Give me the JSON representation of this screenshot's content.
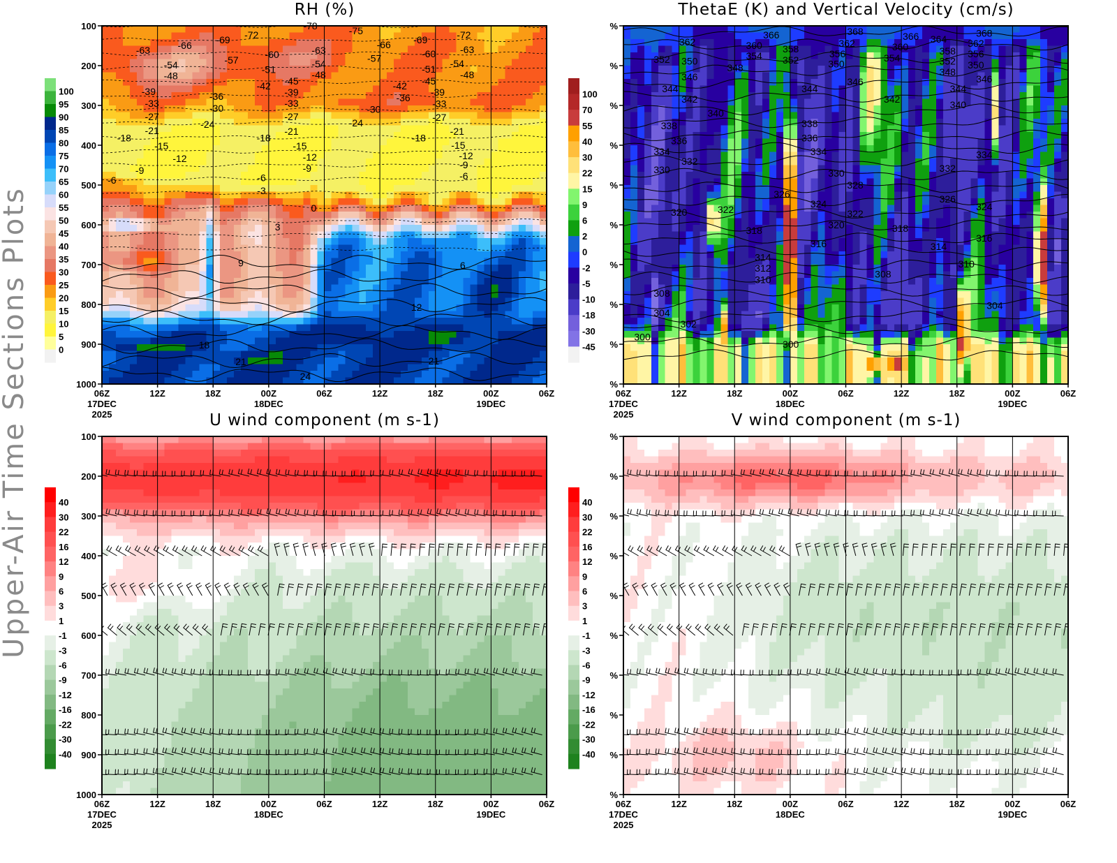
{
  "page_title": "Upper-Air Time Sections Plots",
  "chart_data": [
    {
      "id": "rh",
      "type": "heatmap",
      "title": "RH (%)",
      "x_ticks": [
        "06Z",
        "12Z",
        "18Z",
        "00Z",
        "06Z",
        "12Z",
        "18Z",
        "00Z",
        "06Z"
      ],
      "x_dates": [
        {
          "index": 0,
          "lines": [
            "17DEC",
            "2025"
          ]
        },
        {
          "index": 3,
          "lines": [
            "18DEC"
          ]
        },
        {
          "index": 7,
          "lines": [
            "19DEC"
          ]
        }
      ],
      "y_ticks": [
        "100",
        "200",
        "300",
        "400",
        "500",
        "600",
        "700",
        "800",
        "900",
        "1000"
      ],
      "ylim": [
        1000,
        100
      ],
      "xlabel": "",
      "ylabel": "",
      "colorbar": {
        "labels": [
          "100",
          "95",
          "90",
          "85",
          "80",
          "75",
          "70",
          "65",
          "60",
          "55",
          "50",
          "45",
          "40",
          "35",
          "30",
          "25",
          "20",
          "15",
          "10",
          "5",
          "0"
        ],
        "levels": [
          0,
          5,
          10,
          15,
          20,
          25,
          30,
          35,
          40,
          45,
          50,
          55,
          60,
          65,
          70,
          75,
          80,
          85,
          90,
          95,
          100
        ],
        "colors": [
          "#f2f2f2",
          "#ffff9b",
          "#fff53c",
          "#f5f064",
          "#ffcd28",
          "#fa9b14",
          "#fa5a1e",
          "#e67864",
          "#eb9682",
          "#f0b496",
          "#f5c8b4",
          "#fbe3e3",
          "#d7dcfa",
          "#96d2fa",
          "#3cbefa",
          "#1491f5",
          "#0a6ee6",
          "#0046b4",
          "#00288c",
          "#078a07",
          "#3cb43c",
          "#7de07a"
        ]
      },
      "contour_field": "temperature (C)",
      "contour_labels": [
        [
          3.75,
          100,
          "-78"
        ],
        [
          4.57,
          112,
          "-75"
        ],
        [
          0.74,
          161,
          "-63"
        ],
        [
          1.49,
          149,
          "-66"
        ],
        [
          2.18,
          135,
          "-69"
        ],
        [
          2.69,
          123,
          "-72"
        ],
        [
          1.24,
          198,
          "-54"
        ],
        [
          1.24,
          225,
          "-48"
        ],
        [
          2.33,
          186,
          "-57"
        ],
        [
          3.06,
          172,
          "-60"
        ],
        [
          3.0,
          210,
          "-51"
        ],
        [
          3.9,
          161,
          "-63"
        ],
        [
          3.9,
          196,
          "-54"
        ],
        [
          3.9,
          223,
          "-48"
        ],
        [
          4.9,
          182,
          "-57"
        ],
        [
          5.07,
          147,
          "-66"
        ],
        [
          5.73,
          135,
          "-69"
        ],
        [
          6.51,
          123,
          "-72"
        ],
        [
          6.57,
          160,
          "-63"
        ],
        [
          5.88,
          170,
          "-60"
        ],
        [
          6.39,
          195,
          "-54"
        ],
        [
          5.88,
          209,
          "-51"
        ],
        [
          6.57,
          223,
          "-48"
        ],
        [
          3.41,
          239,
          "-45"
        ],
        [
          2.91,
          251,
          "-42"
        ],
        [
          3.41,
          267,
          "-39"
        ],
        [
          3.41,
          295,
          "-33"
        ],
        [
          0.84,
          265,
          "-39"
        ],
        [
          0.9,
          295,
          "-33"
        ],
        [
          2.06,
          277,
          "-36"
        ],
        [
          2.06,
          307,
          "-30"
        ],
        [
          0.9,
          328,
          "-27"
        ],
        [
          1.9,
          347,
          "-24"
        ],
        [
          0.9,
          363,
          "-21"
        ],
        [
          0.4,
          382,
          "-18"
        ],
        [
          1.07,
          402,
          "-15"
        ],
        [
          1.4,
          433,
          "-12"
        ],
        [
          0.68,
          463,
          "-9"
        ],
        [
          0.18,
          488,
          "-6"
        ],
        [
          3.41,
          328,
          "-27"
        ],
        [
          3.41,
          365,
          "-21"
        ],
        [
          2.91,
          382,
          "-18"
        ],
        [
          3.56,
          402,
          "-15"
        ],
        [
          3.74,
          430,
          "-12"
        ],
        [
          3.69,
          458,
          "-9"
        ],
        [
          2.87,
          482,
          "-6"
        ],
        [
          2.87,
          514,
          "-3"
        ],
        [
          4.89,
          310,
          "-30"
        ],
        [
          4.57,
          344,
          "-24"
        ],
        [
          5.36,
          251,
          "-42"
        ],
        [
          5.42,
          281,
          "-36"
        ],
        [
          5.88,
          239,
          "-45"
        ],
        [
          6.04,
          267,
          "-39"
        ],
        [
          6.07,
          296,
          "-33"
        ],
        [
          6.07,
          330,
          "-27"
        ],
        [
          6.39,
          365,
          "-21"
        ],
        [
          5.7,
          382,
          "-18"
        ],
        [
          6.41,
          400,
          "-15"
        ],
        [
          6.55,
          426,
          "-12"
        ],
        [
          6.51,
          449,
          "-9"
        ],
        [
          6.51,
          477,
          "-6"
        ],
        [
          3.81,
          558,
          "0"
        ],
        [
          3.16,
          605,
          "3"
        ],
        [
          2.5,
          696,
          "9"
        ],
        [
          6.49,
          702,
          "6"
        ],
        [
          5.66,
          807,
          "12"
        ],
        [
          1.84,
          902,
          "18"
        ],
        [
          2.5,
          944,
          "21"
        ],
        [
          5.97,
          942,
          "21"
        ],
        [
          3.66,
          981,
          "24"
        ]
      ]
    },
    {
      "id": "thetae",
      "type": "heatmap",
      "title": "ThetaE (K) and Vertical Velocity (cm/s)",
      "x_ticks": [
        "06Z",
        "12Z",
        "18Z",
        "00Z",
        "06Z",
        "12Z",
        "18Z",
        "00Z",
        "06Z"
      ],
      "x_dates": [
        {
          "index": 0,
          "lines": [
            "17DEC",
            "2025"
          ]
        },
        {
          "index": 3,
          "lines": [
            "18DEC"
          ]
        },
        {
          "index": 7,
          "lines": [
            "19DEC"
          ]
        }
      ],
      "y_ticks": [
        "%",
        "%",
        "%",
        "%",
        "%",
        "%",
        "%",
        "%",
        "%",
        "%"
      ],
      "ylim": [
        1000,
        100
      ],
      "xlabel": "",
      "ylabel": "",
      "colorbar": {
        "labels": [
          "100",
          "70",
          "55",
          "40",
          "30",
          "22",
          "15",
          "9",
          "6",
          "2",
          "0",
          "-2",
          "-5",
          "-10",
          "-18",
          "-30",
          "-45"
        ],
        "levels": [
          -45,
          -30,
          -18,
          -10,
          -5,
          -2,
          0,
          2,
          6,
          9,
          15,
          22,
          30,
          40,
          55,
          70,
          100
        ],
        "colors": [
          "#f2f2f2",
          "#8273e6",
          "#7360dc",
          "#4b3cc8",
          "#2d1e9b",
          "#2800a0",
          "#1e3cff",
          "#1464d2",
          "#0fa00f",
          "#3cd23c",
          "#82f56e",
          "#fff5a5",
          "#ffe178",
          "#ffbe3c",
          "#ffa000",
          "#c83c3c",
          "#b42828",
          "#a01e1e"
        ]
      },
      "contour_field": "ThetaE (K)",
      "contour_labels": [
        [
          2.66,
          123,
          "366"
        ],
        [
          4.17,
          114,
          "368"
        ],
        [
          5.17,
          126,
          "366"
        ],
        [
          5.67,
          133,
          "364"
        ],
        [
          6.49,
          118,
          "368"
        ],
        [
          1.15,
          140,
          "362"
        ],
        [
          2.35,
          149,
          "360"
        ],
        [
          3.01,
          158,
          "358"
        ],
        [
          4.02,
          144,
          "362"
        ],
        [
          4.98,
          153,
          "360"
        ],
        [
          3.85,
          170,
          "356"
        ],
        [
          5.83,
          163,
          "358"
        ],
        [
          6.34,
          144,
          "362"
        ],
        [
          2.35,
          175,
          "354"
        ],
        [
          3.01,
          186,
          "352"
        ],
        [
          3.83,
          196,
          "350"
        ],
        [
          4.83,
          181,
          "354"
        ],
        [
          6.34,
          170,
          "356"
        ],
        [
          0.69,
          184,
          "352"
        ],
        [
          1.19,
          189,
          "350"
        ],
        [
          5.83,
          189,
          "352"
        ],
        [
          6.34,
          198,
          "350"
        ],
        [
          2.01,
          205,
          "348"
        ],
        [
          5.83,
          216,
          "348"
        ],
        [
          1.19,
          228,
          "346"
        ],
        [
          4.17,
          240,
          "346"
        ],
        [
          6.49,
          233,
          "346"
        ],
        [
          0.84,
          258,
          "344"
        ],
        [
          3.35,
          258,
          "344"
        ],
        [
          6.02,
          258,
          "344"
        ],
        [
          1.19,
          284,
          "342"
        ],
        [
          4.83,
          284,
          "342"
        ],
        [
          1.66,
          319,
          "340"
        ],
        [
          6.02,
          298,
          "340"
        ],
        [
          0.82,
          351,
          "338"
        ],
        [
          3.35,
          346,
          "338"
        ],
        [
          1.0,
          389,
          "336"
        ],
        [
          3.35,
          382,
          "336"
        ],
        [
          0.69,
          416,
          "334"
        ],
        [
          3.51,
          416,
          "334"
        ],
        [
          6.49,
          424,
          "334"
        ],
        [
          1.19,
          440,
          "332"
        ],
        [
          5.83,
          458,
          "332"
        ],
        [
          0.69,
          461,
          "330"
        ],
        [
          3.83,
          470,
          "330"
        ],
        [
          4.17,
          500,
          "328"
        ],
        [
          2.85,
          523,
          "326"
        ],
        [
          5.83,
          535,
          "326"
        ],
        [
          3.51,
          547,
          "324"
        ],
        [
          6.49,
          554,
          "324"
        ],
        [
          1.84,
          561,
          "322"
        ],
        [
          4.17,
          572,
          "322"
        ],
        [
          1.0,
          568,
          "320"
        ],
        [
          3.83,
          600,
          "320"
        ],
        [
          2.35,
          614,
          "318"
        ],
        [
          4.98,
          609,
          "318"
        ],
        [
          3.51,
          647,
          "316"
        ],
        [
          6.49,
          633,
          "316"
        ],
        [
          2.51,
          682,
          "314"
        ],
        [
          5.67,
          654,
          "314"
        ],
        [
          2.51,
          709,
          "312"
        ],
        [
          2.51,
          738,
          "310"
        ],
        [
          6.17,
          698,
          "310"
        ],
        [
          0.69,
          772,
          "308"
        ],
        [
          4.67,
          724,
          "308"
        ],
        [
          0.69,
          821,
          "304"
        ],
        [
          6.68,
          803,
          "304"
        ],
        [
          1.17,
          849,
          "302"
        ],
        [
          0.34,
          882,
          "300"
        ],
        [
          3.01,
          900,
          "300"
        ]
      ]
    },
    {
      "id": "uwind",
      "type": "heatmap",
      "title": "U wind component (m s-1)",
      "x_ticks": [
        "06Z",
        "12Z",
        "18Z",
        "00Z",
        "06Z",
        "12Z",
        "18Z",
        "00Z",
        "06Z"
      ],
      "x_dates": [
        {
          "index": 0,
          "lines": [
            "17DEC",
            "2025"
          ]
        },
        {
          "index": 3,
          "lines": [
            "18DEC"
          ]
        },
        {
          "index": 7,
          "lines": [
            "19DEC"
          ]
        }
      ],
      "y_ticks": [
        "100",
        "200",
        "300",
        "400",
        "500",
        "600",
        "700",
        "800",
        "900",
        "1000"
      ],
      "ylim": [
        1000,
        100
      ],
      "xlabel": "",
      "ylabel": "",
      "colorbar": {
        "labels": [
          "40",
          "30",
          "22",
          "16",
          "12",
          "9",
          "6",
          "3",
          "1",
          "-1",
          "-3",
          "-6",
          "-9",
          "-12",
          "-16",
          "-22",
          "-30",
          "-40"
        ],
        "levels": [
          -40,
          -30,
          -22,
          -16,
          -12,
          -9,
          -6,
          -3,
          -1,
          1,
          3,
          6,
          9,
          12,
          16,
          22,
          30,
          40
        ],
        "colors": [
          "#1e821e",
          "#328c32",
          "#4b9b4b",
          "#64aa64",
          "#82b982",
          "#9bc89b",
          "#b4d7b4",
          "#cde6cd",
          "#e6f0e6",
          "#ffffff",
          "#ffdcdc",
          "#ffbebe",
          "#ffa0a0",
          "#ff8282",
          "#ff6464",
          "#ff5050",
          "#ff3c3c",
          "#ff1e1e",
          "#ff0000"
        ]
      },
      "wind_barb_levels": [
        200,
        300,
        400,
        500,
        600,
        700,
        850,
        900,
        950
      ],
      "contour_labels": []
    },
    {
      "id": "vwind",
      "type": "heatmap",
      "title": "V wind component (m s-1)",
      "x_ticks": [
        "06Z",
        "12Z",
        "18Z",
        "00Z",
        "06Z",
        "12Z",
        "18Z",
        "00Z",
        "06Z"
      ],
      "x_dates": [
        {
          "index": 0,
          "lines": [
            "17DEC",
            "2025"
          ]
        },
        {
          "index": 3,
          "lines": [
            "18DEC"
          ]
        },
        {
          "index": 7,
          "lines": [
            "19DEC"
          ]
        }
      ],
      "y_ticks": [
        "%",
        "%",
        "%",
        "%",
        "%",
        "%",
        "%",
        "%",
        "%",
        "%"
      ],
      "ylim": [
        1000,
        100
      ],
      "xlabel": "",
      "ylabel": "",
      "colorbar": {
        "labels": [
          "40",
          "30",
          "22",
          "16",
          "12",
          "9",
          "6",
          "3",
          "1",
          "-1",
          "-3",
          "-6",
          "-9",
          "-12",
          "-16",
          "-22",
          "-30",
          "-40"
        ],
        "levels": [
          -40,
          -30,
          -22,
          -16,
          -12,
          -9,
          -6,
          -3,
          -1,
          1,
          3,
          6,
          9,
          12,
          16,
          22,
          30,
          40
        ],
        "colors": [
          "#1e821e",
          "#328c32",
          "#4b9b4b",
          "#64aa64",
          "#82b982",
          "#9bc89b",
          "#b4d7b4",
          "#cde6cd",
          "#e6f0e6",
          "#ffffff",
          "#ffdcdc",
          "#ffbebe",
          "#ffa0a0",
          "#ff8282",
          "#ff6464",
          "#ff5050",
          "#ff3c3c",
          "#ff1e1e",
          "#ff0000"
        ]
      },
      "wind_barb_levels": [
        200,
        300,
        400,
        500,
        600,
        700,
        850,
        900,
        950
      ],
      "contour_labels": []
    }
  ]
}
